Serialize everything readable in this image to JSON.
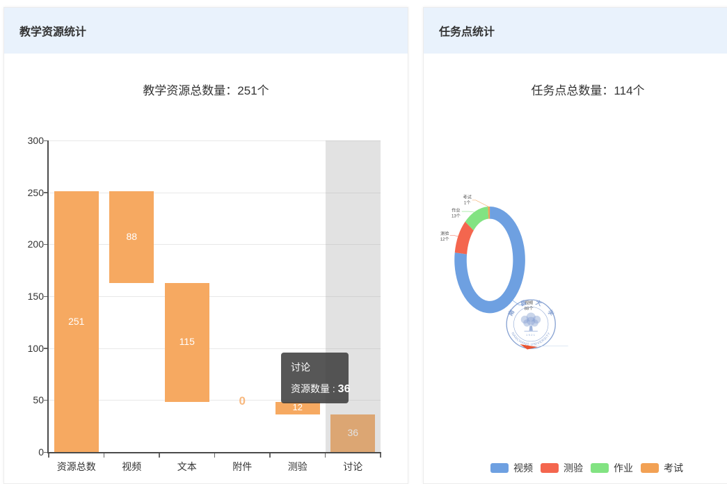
{
  "left_panel": {
    "header": "教学资源统计",
    "title": "教学资源总数量：251个"
  },
  "right_panel": {
    "header": "任务点统计",
    "title": "任务点总数量：114个"
  },
  "chart_data": [
    {
      "type": "bar",
      "panel": "left",
      "title": "教学资源总数量：251个",
      "xlabel": "",
      "ylabel": "",
      "categories": [
        "资源总数",
        "视频",
        "文本",
        "附件",
        "测验",
        "讨论"
      ],
      "values": [
        251,
        88,
        115,
        0,
        12,
        36
      ],
      "ranges": [
        [
          0,
          251
        ],
        [
          163,
          251
        ],
        [
          48,
          163
        ],
        [
          48,
          48
        ],
        [
          36,
          48
        ],
        [
          0,
          36
        ]
      ],
      "ylim": [
        0,
        300
      ],
      "yticks": [
        0,
        50,
        100,
        150,
        200,
        250,
        300
      ],
      "grid": true,
      "bar_color": "#F6A961",
      "highlight_index": 5,
      "tooltip": {
        "title": "讨论",
        "label": "资源数量",
        "separator": " : ",
        "value": 36
      }
    },
    {
      "type": "pie",
      "panel": "right",
      "title": "任务点总数量：114个",
      "total": 114,
      "unit": "个",
      "donut": true,
      "legend_position": "bottom",
      "series": [
        {
          "name": "视频",
          "value": 88,
          "color": "#6EA0E1"
        },
        {
          "name": "测验",
          "value": 12,
          "color": "#F4664E"
        },
        {
          "name": "作业",
          "value": 13,
          "color": "#82E382"
        },
        {
          "name": "考试",
          "value": 1,
          "color": "#F2A154"
        }
      ]
    }
  ],
  "watermark": {
    "chars": [
      "南",
      "昌",
      "大",
      "学"
    ],
    "line_bottom": "NANCHANG UNIVERSITY",
    "year": "1921",
    "color": "#6688C6"
  },
  "cursor_color": "#E95432"
}
